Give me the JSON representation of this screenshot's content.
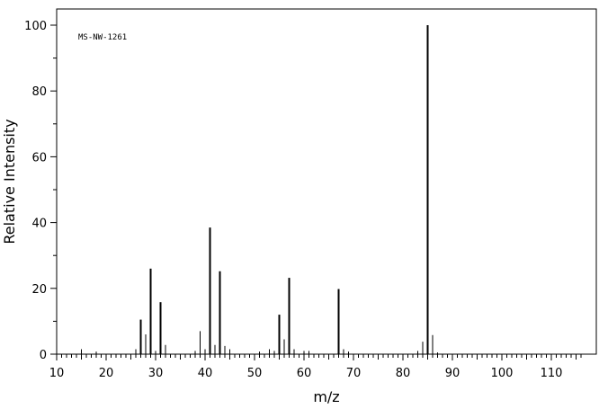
{
  "chart_data": {
    "type": "bar",
    "annotation": "MS-NW-1261",
    "xlabel": "m/z",
    "ylabel": "Relative Intensity",
    "xlim": [
      10,
      118
    ],
    "ylim": [
      0,
      105
    ],
    "xticks": [
      10,
      20,
      30,
      40,
      50,
      60,
      70,
      80,
      90,
      100,
      110
    ],
    "yticks": [
      0,
      20,
      40,
      60,
      80,
      100
    ],
    "grid": false,
    "peaks": [
      {
        "mz": 15,
        "intensity": 1.5
      },
      {
        "mz": 18,
        "intensity": 0.8
      },
      {
        "mz": 26,
        "intensity": 1.5
      },
      {
        "mz": 27,
        "intensity": 10.5
      },
      {
        "mz": 28,
        "intensity": 6.0
      },
      {
        "mz": 29,
        "intensity": 26.0
      },
      {
        "mz": 30,
        "intensity": 1.0
      },
      {
        "mz": 31,
        "intensity": 15.8
      },
      {
        "mz": 32,
        "intensity": 2.8
      },
      {
        "mz": 38,
        "intensity": 1.0
      },
      {
        "mz": 39,
        "intensity": 7.0
      },
      {
        "mz": 40,
        "intensity": 1.5
      },
      {
        "mz": 41,
        "intensity": 38.5
      },
      {
        "mz": 42,
        "intensity": 2.8
      },
      {
        "mz": 43,
        "intensity": 25.2
      },
      {
        "mz": 44,
        "intensity": 2.5
      },
      {
        "mz": 45,
        "intensity": 1.5
      },
      {
        "mz": 51,
        "intensity": 0.8
      },
      {
        "mz": 53,
        "intensity": 1.5
      },
      {
        "mz": 54,
        "intensity": 1.0
      },
      {
        "mz": 55,
        "intensity": 12.0
      },
      {
        "mz": 56,
        "intensity": 4.5
      },
      {
        "mz": 57,
        "intensity": 23.2
      },
      {
        "mz": 58,
        "intensity": 1.5
      },
      {
        "mz": 60,
        "intensity": 1.0
      },
      {
        "mz": 61,
        "intensity": 1.0
      },
      {
        "mz": 67,
        "intensity": 19.8
      },
      {
        "mz": 68,
        "intensity": 1.5
      },
      {
        "mz": 69,
        "intensity": 0.8
      },
      {
        "mz": 83,
        "intensity": 1.0
      },
      {
        "mz": 84,
        "intensity": 3.8
      },
      {
        "mz": 85,
        "intensity": 100.0
      },
      {
        "mz": 86,
        "intensity": 5.8
      },
      {
        "mz": 87,
        "intensity": 0.5
      }
    ]
  }
}
